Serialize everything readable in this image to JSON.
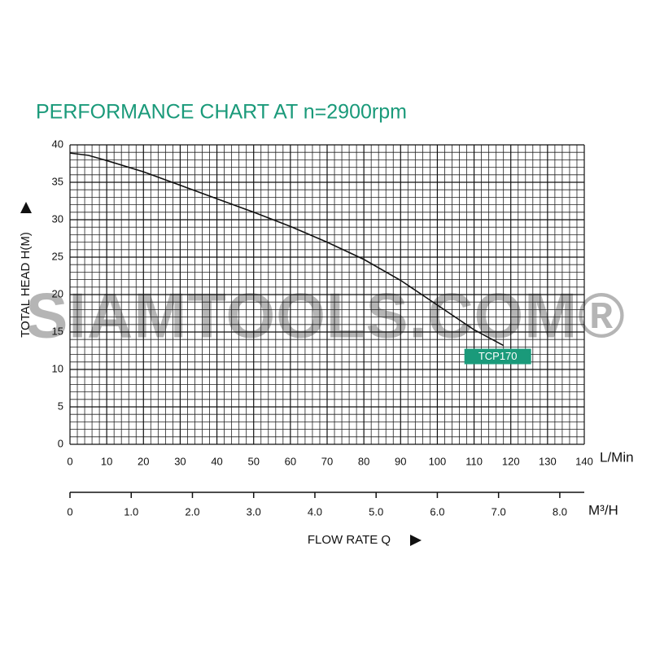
{
  "chart_data": {
    "type": "line",
    "title": "PERFORMANCE CHART AT n=2900rpm",
    "y_label": "TOTAL HEAD H(M)",
    "x_label": "FLOW RATE Q",
    "x_unit": "L/Min",
    "x2_unit": "M³/H",
    "watermark": "SIAMTOOLS.COM®",
    "xlim": [
      0,
      140
    ],
    "xticks": [
      0,
      10,
      20,
      30,
      40,
      50,
      60,
      70,
      80,
      90,
      100,
      110,
      120,
      130,
      140
    ],
    "x2lim": [
      0,
      8.4
    ],
    "x2ticks": [
      0,
      {
        "value": 1,
        "label": "1.0"
      },
      {
        "value": 2,
        "label": "2.0"
      },
      {
        "value": 3,
        "label": "3.0"
      },
      {
        "value": 4,
        "label": "4.0"
      },
      {
        "value": 5,
        "label": "5.0"
      },
      {
        "value": 6,
        "label": "6.0"
      },
      {
        "value": 7,
        "label": "7.0"
      },
      {
        "value": 8,
        "label": "8.0"
      }
    ],
    "ylim": [
      0,
      40
    ],
    "yticks": [
      0,
      5,
      10,
      15,
      20,
      25,
      30,
      35,
      40
    ],
    "grid": true,
    "series": [
      {
        "name": "TCP170",
        "color": "#111111",
        "x": [
          0,
          5,
          10,
          20,
          30,
          40,
          50,
          60,
          70,
          80,
          90,
          100,
          110,
          118
        ],
        "values": [
          38.9,
          38.6,
          37.9,
          36.4,
          34.6,
          32.8,
          31.0,
          29.1,
          27.0,
          24.7,
          21.9,
          18.6,
          15.3,
          13.2
        ]
      }
    ]
  }
}
